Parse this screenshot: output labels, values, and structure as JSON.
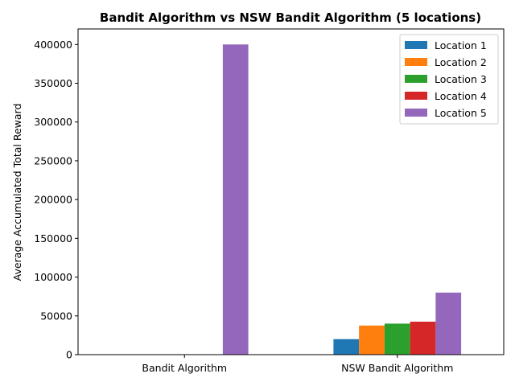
{
  "chart_data": {
    "type": "bar",
    "title": "Bandit Algorithm vs NSW Bandit Algorithm (5 locations)",
    "xlabel": "",
    "ylabel": "Average Accumulated Total Reward",
    "categories": [
      "Bandit Algorithm",
      "NSW Bandit Algorithm"
    ],
    "ylim": [
      0,
      420000
    ],
    "yticks": [
      0,
      50000,
      100000,
      150000,
      200000,
      250000,
      300000,
      350000,
      400000
    ],
    "series": [
      {
        "name": "Location 1",
        "color": "#1f77b4",
        "values": [
          0,
          20000
        ]
      },
      {
        "name": "Location 2",
        "color": "#ff7f0e",
        "values": [
          0,
          37500
        ]
      },
      {
        "name": "Location 3",
        "color": "#2ca02c",
        "values": [
          0,
          40000
        ]
      },
      {
        "name": "Location 4",
        "color": "#d62728",
        "values": [
          0,
          42500
        ]
      },
      {
        "name": "Location 5",
        "color": "#9467bd",
        "values": [
          400000,
          80000
        ]
      }
    ],
    "grid": false,
    "legend": "top-right"
  }
}
